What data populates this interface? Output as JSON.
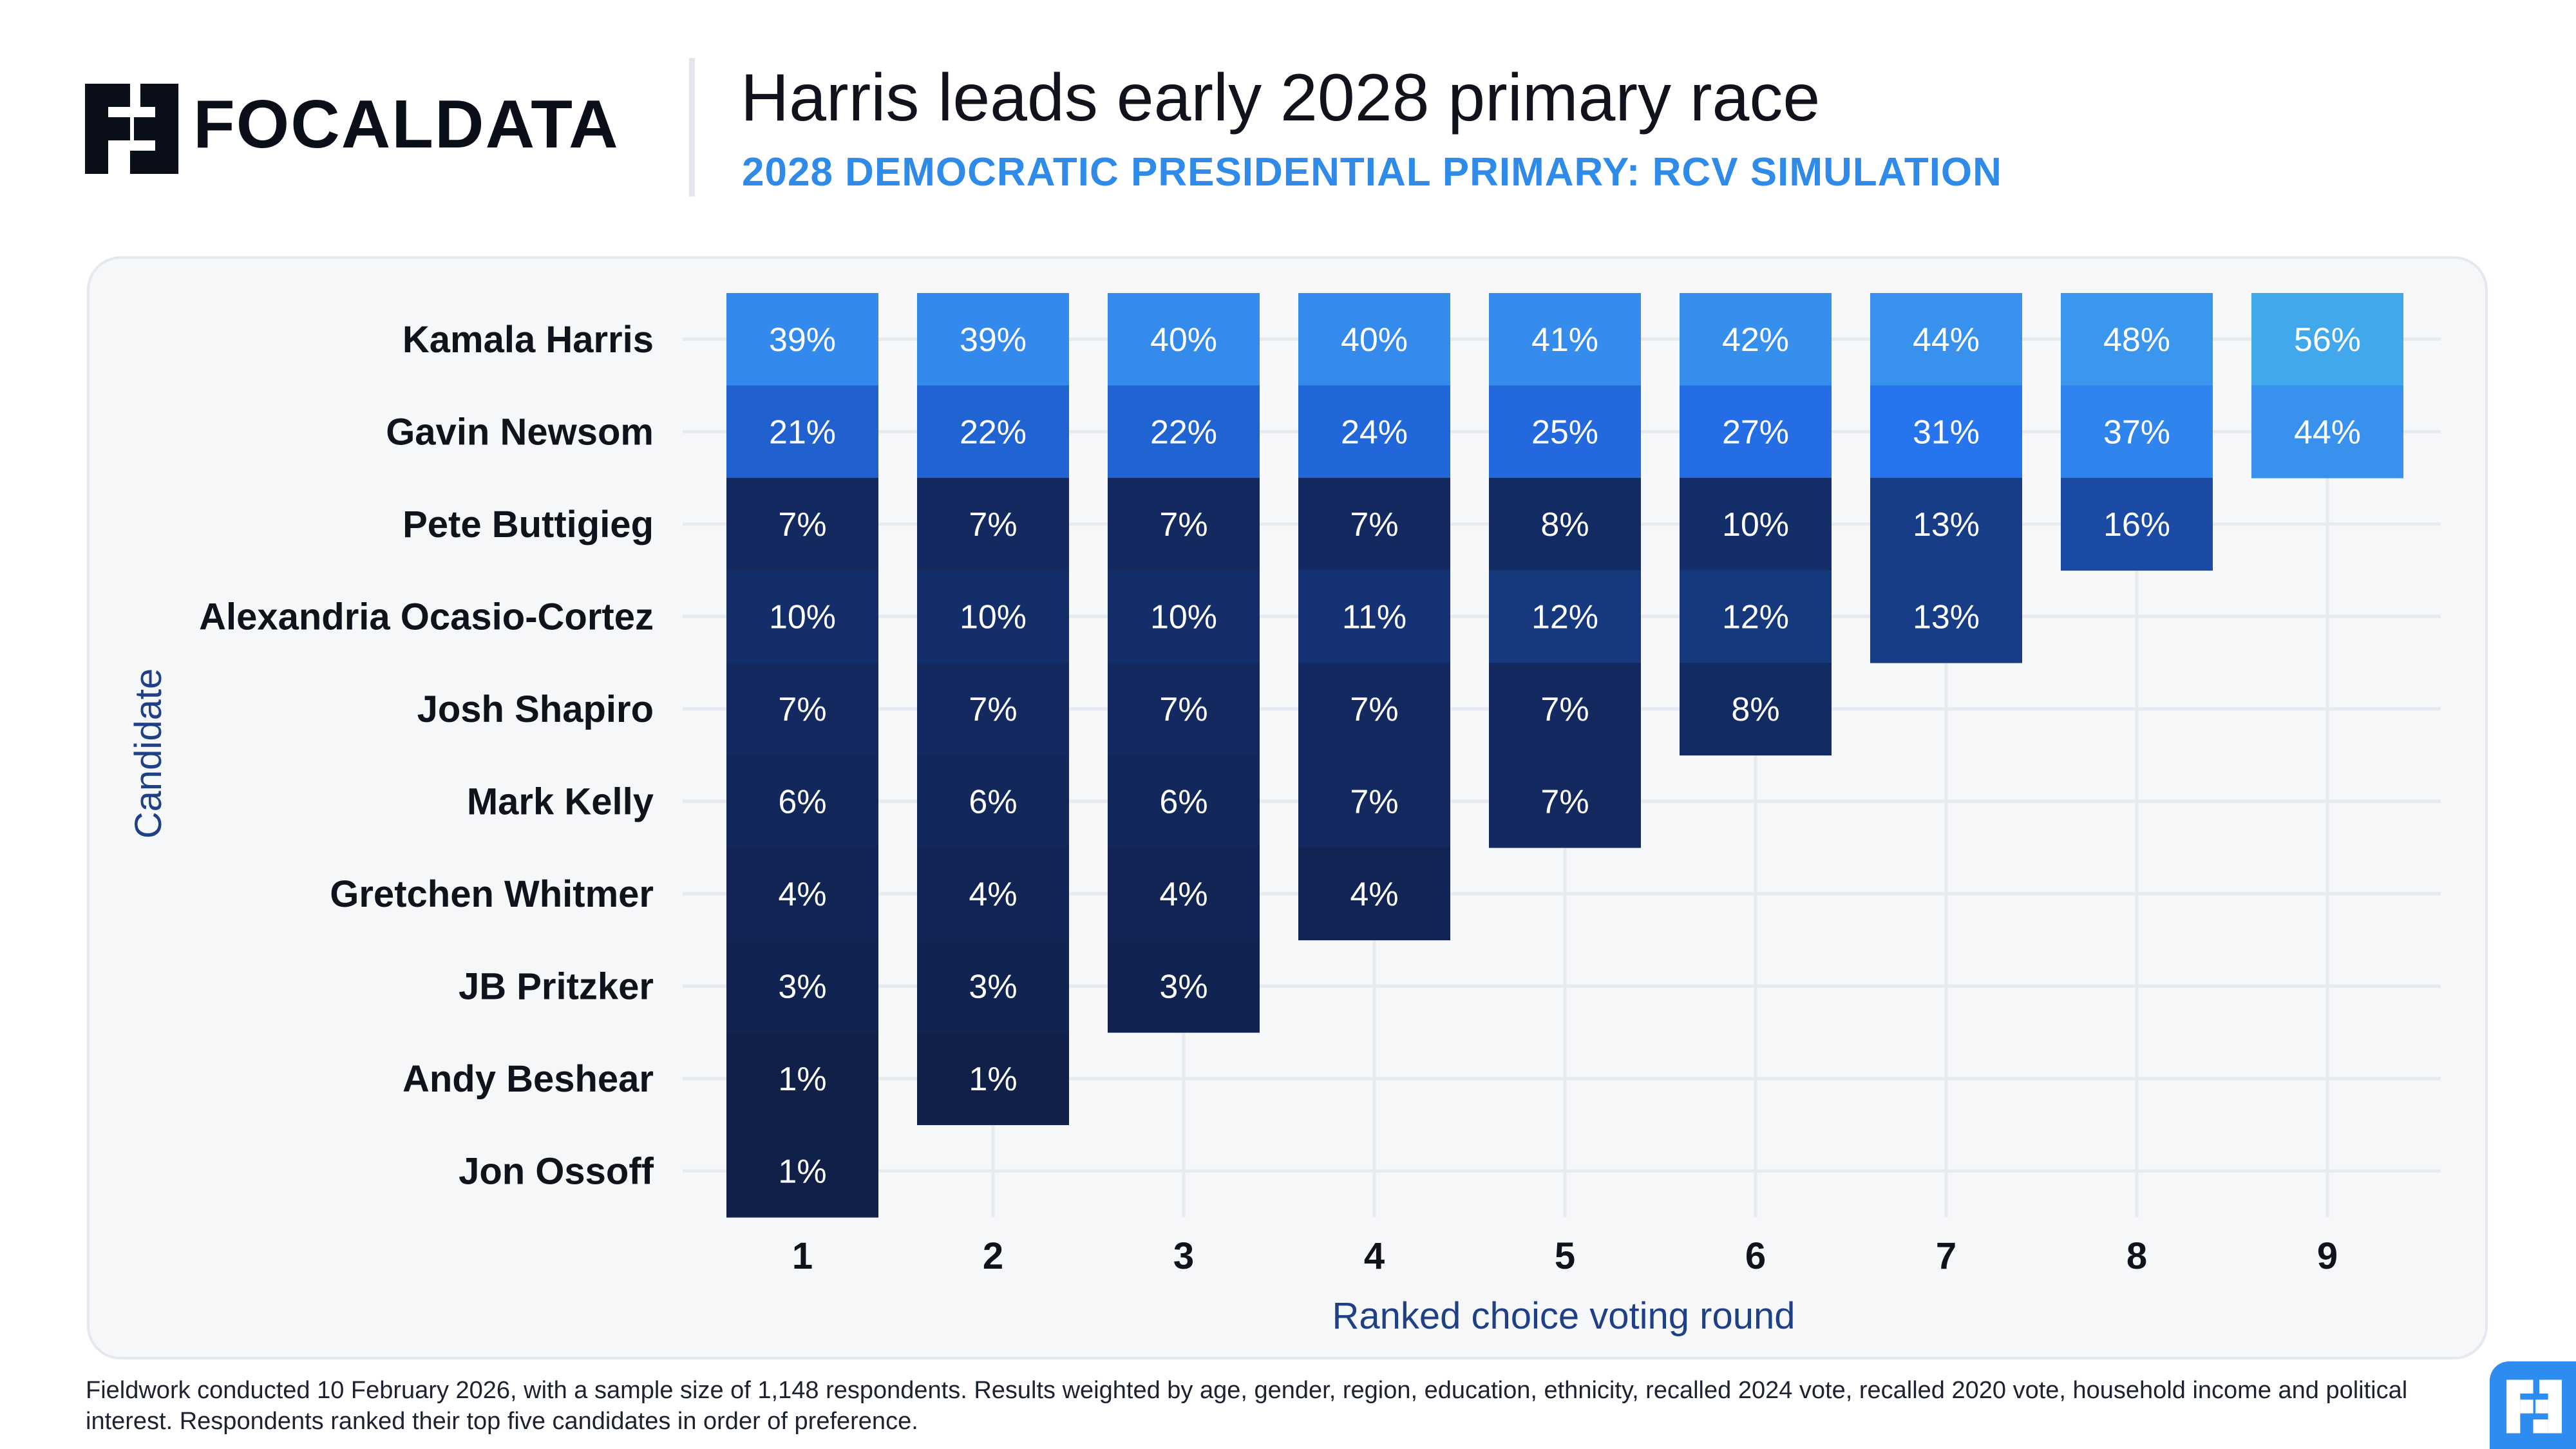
{
  "brand": {
    "name": "FOCALDATA"
  },
  "header": {
    "title": "Harris leads early 2028 primary race",
    "subtitle": "2028 DEMOCRATIC PRESIDENTIAL PRIMARY: RCV SIMULATION"
  },
  "footnote": "Fieldwork conducted 10 February 2026, with a sample size of 1,148 respondents. Results weighted by age, gender, region, education, ethnicity, recalled 2024 vote, recalled 2020 vote, household income and political interest. Respondents ranked their top five candidates in order of preference.",
  "colors": {
    "accent": "#2f8ae8",
    "axis_label": "#1f3f86",
    "cell_low": "#0f1e45",
    "cell_high": "#41a8ec",
    "panel_bg": "#f6f7f9"
  },
  "chart_data": {
    "type": "heatmap",
    "title": "Harris leads early 2028 primary race",
    "subtitle": "2028 DEMOCRATIC PRESIDENTIAL PRIMARY: RCV SIMULATION",
    "xlabel": "Ranked choice voting round",
    "ylabel": "Candidate",
    "rounds": [
      "1",
      "2",
      "3",
      "4",
      "5",
      "6",
      "7",
      "8",
      "9"
    ],
    "candidates": [
      "Kamala Harris",
      "Gavin Newsom",
      "Pete Buttigieg",
      "Alexandria Ocasio-Cortez",
      "Josh Shapiro",
      "Mark Kelly",
      "Gretchen Whitmer",
      "JB Pritzker",
      "Andy Beshear",
      "Jon Ossoff"
    ],
    "values": [
      [
        39,
        39,
        40,
        40,
        41,
        42,
        44,
        48,
        56
      ],
      [
        21,
        22,
        22,
        24,
        25,
        27,
        31,
        37,
        44
      ],
      [
        7,
        7,
        7,
        7,
        8,
        10,
        13,
        16,
        null
      ],
      [
        10,
        10,
        10,
        11,
        12,
        12,
        13,
        null,
        null
      ],
      [
        7,
        7,
        7,
        7,
        7,
        8,
        null,
        null,
        null
      ],
      [
        6,
        6,
        6,
        7,
        7,
        null,
        null,
        null,
        null
      ],
      [
        4,
        4,
        4,
        4,
        null,
        null,
        null,
        null,
        null
      ],
      [
        3,
        3,
        3,
        null,
        null,
        null,
        null,
        null,
        null
      ],
      [
        1,
        1,
        null,
        null,
        null,
        null,
        null,
        null,
        null
      ],
      [
        1,
        null,
        null,
        null,
        null,
        null,
        null,
        null,
        null
      ]
    ],
    "value_suffix": "%",
    "grid": true
  }
}
